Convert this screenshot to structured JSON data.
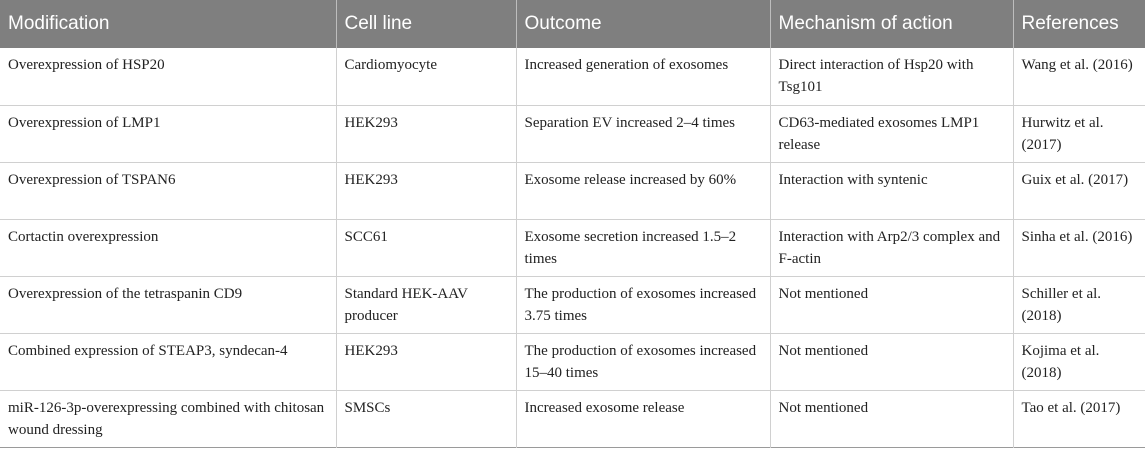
{
  "headers": [
    "Modification",
    "Cell line",
    "Outcome",
    "Mechanism of action",
    "References"
  ],
  "rows": [
    [
      "Overexpression of HSP20",
      "Cardiomyocyte",
      "Increased generation of exosomes",
      "Direct interaction of Hsp20 with Tsg101",
      "Wang et al. (2016)"
    ],
    [
      "Overexpression of LMP1",
      "HEK293",
      "Separation EV increased 2–4 times",
      "CD63-mediated exosomes LMP1 release",
      "Hurwitz et al. (2017)"
    ],
    [
      "Overexpression of TSPAN6",
      "HEK293",
      "Exosome release increased by 60%",
      "Interaction with syntenic",
      "Guix et al. (2017)"
    ],
    [
      "Cortactin overexpression",
      "SCC61",
      "Exosome secretion increased 1.5–2 times",
      "Interaction with Arp2/3 complex and F-actin",
      "Sinha et al. (2016)"
    ],
    [
      "Overexpression of the tetraspanin CD9",
      "Standard HEK-AAV producer",
      "The production of exosomes increased 3.75 times",
      "Not mentioned",
      "Schiller et al. (2018)"
    ],
    [
      "Combined expression of STEAP3, syndecan-4",
      "HEK293",
      "The production of exosomes increased 15–40 times",
      "Not mentioned",
      "Kojima et al. (2018)"
    ],
    [
      "miR-126-3p-overexpressing combined with chitosan wound dressing",
      "SMSCs",
      "Increased exosome release",
      "Not mentioned",
      "Tao et al. (2017)"
    ]
  ]
}
